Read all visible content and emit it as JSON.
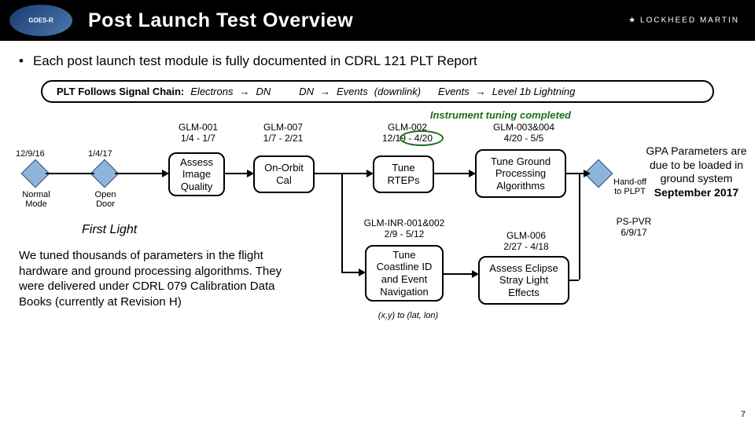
{
  "header": {
    "title": "Post Launch Test Overview",
    "lm": "LOCKHEED MARTIN"
  },
  "bullet": "Each post launch test module is fully documented in CDRL 121 PLT Report",
  "chain": {
    "label": "PLT Follows Signal Chain:",
    "p1": "Electrons",
    "p2": "DN",
    "p3": "DN",
    "p4": "Events",
    "p5": "(downlink)",
    "p6": "Events",
    "p7": "Level 1b Lightning"
  },
  "tuning_note": "Instrument tuning completed",
  "dates": {
    "d1": "12/9/16",
    "d2": "1/4/17",
    "normal": "Normal Mode",
    "open": "Open Door"
  },
  "glm": {
    "g001": "GLM-001\n1/4 - 1/7",
    "g007": "GLM-007\n1/7 - 2/21",
    "g002": "GLM-002\n12/19 - 4/20",
    "g003": "GLM-003&004\n4/20 - 5/5",
    "ginr": "GLM-INR-001&002\n2/9 - 5/12",
    "g006": "GLM-006\n2/27 - 4/18"
  },
  "boxes": {
    "assess": "Assess Image Quality",
    "orbit": "On-Orbit Cal",
    "rtep": "Tune RTEPs",
    "ground": "Tune Ground Processing Algorithms",
    "coast": "Tune Coastline ID and Event Navigation",
    "eclipse": "Assess Eclipse Stray Light Effects"
  },
  "firstlight": "First Light",
  "para": "We tuned thousands of parameters in the flight hardware and ground processing algorithms. They were delivered under CDRL 079 Calibration Data Books (currently at Revision H)",
  "xy": "(x,y) to (lat, lon)",
  "handoff": "Hand-off to PLPT",
  "pspvr": "PS-PVR\n6/9/17",
  "side": "GPA Parameters are due to be loaded in ground system September 2017",
  "pagenum": "7",
  "colors": {
    "diamond_fill": "#8fb4d9",
    "diamond_border": "#2a4a7a",
    "green": "#1a6e1a"
  }
}
